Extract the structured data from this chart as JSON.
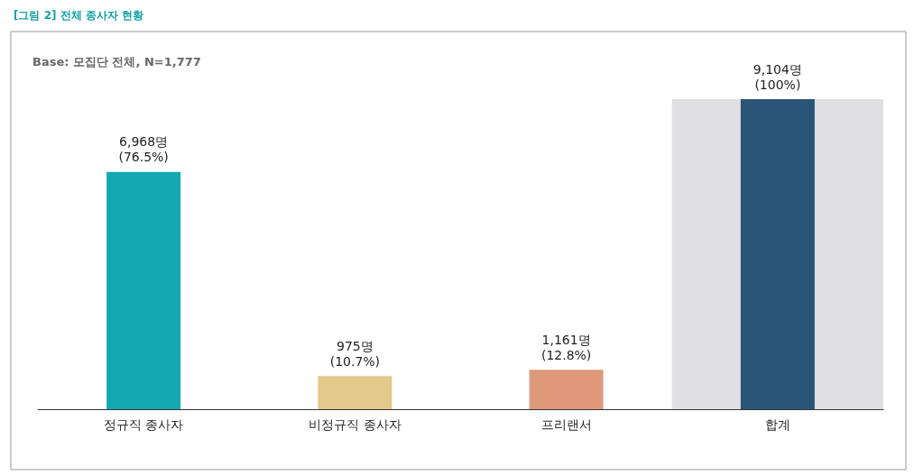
{
  "chart_data": {
    "type": "bar",
    "title": "[그림 2] 전체 종사자 현황",
    "annotations": [
      "Base: 모집단 전체, N=1,777"
    ],
    "categories": [
      "정규직 종사자",
      "비정규직 종사자",
      "프리랜서",
      "합계"
    ],
    "values": [
      6968,
      975,
      1161,
      9104
    ],
    "colors": [
      "#14a9b0",
      "#e3c98b",
      "#de997b",
      "#2a5577"
    ],
    "value_labels": [
      "6,968명\n(76.5%)",
      "975명\n(10.7%)",
      "1,161명\n(12.8%)",
      "9,104명\n(100%)"
    ],
    "bands": [
      {
        "axis": "x",
        "from": "합계",
        "to": "합계",
        "color": "#e0e0e2"
      }
    ],
    "grid": false
  }
}
